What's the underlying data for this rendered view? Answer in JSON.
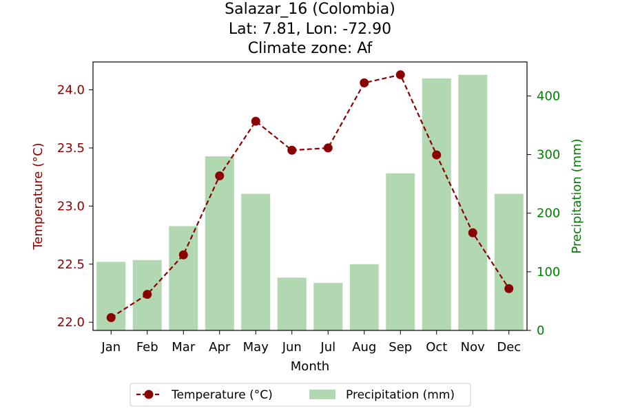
{
  "chart_data": {
    "type": "bar+line",
    "title_lines": [
      "Salazar_16 (Colombia)",
      "Lat: 7.81, Lon: -72.90",
      "Climate zone: Af"
    ],
    "xlabel": "Month",
    "categories": [
      "Jan",
      "Feb",
      "Mar",
      "Apr",
      "May",
      "Jun",
      "Jul",
      "Aug",
      "Sep",
      "Oct",
      "Nov",
      "Dec"
    ],
    "left_axis": {
      "label": "Temperature (°C)",
      "range": [
        21.93,
        24.24
      ],
      "ticks": [
        "22.0",
        "22.5",
        "23.0",
        "23.5",
        "24.0"
      ],
      "color": "#8b0000"
    },
    "right_axis": {
      "label": "Precipitation (mm)",
      "range": [
        0,
        458
      ],
      "ticks": [
        "0",
        "100",
        "200",
        "300",
        "400"
      ],
      "color": "#008000"
    },
    "series": [
      {
        "name": "Temperature (°C)",
        "kind": "line",
        "axis": "left",
        "color": "#8b0000",
        "values": [
          22.04,
          22.24,
          22.58,
          23.26,
          23.73,
          23.48,
          23.5,
          24.06,
          24.13,
          23.44,
          22.77,
          22.29
        ]
      },
      {
        "name": "Precipitation (mm)",
        "kind": "bar",
        "axis": "right",
        "color": "#b2d8b2",
        "values": [
          117,
          120,
          178,
          297,
          233,
          90,
          81,
          113,
          268,
          430,
          436,
          233
        ]
      }
    ],
    "legend_position": "below-center"
  }
}
